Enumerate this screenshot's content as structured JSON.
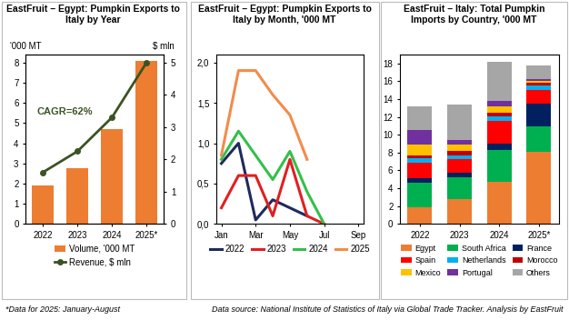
{
  "chart_data": [
    {
      "type": "bar",
      "title": "EastFruit – Egypt: Pumpkin Exports to Italy by Year",
      "categories": [
        "2022",
        "2023",
        "2024",
        "2025*"
      ],
      "series": [
        {
          "name": "Volume, '000 MT",
          "type": "bar",
          "color": "#ED7D31",
          "values": [
            1.9,
            2.75,
            4.7,
            8.1
          ]
        },
        {
          "name": "Revenue, $ mln",
          "type": "line",
          "color": "#3B5323",
          "marker": "o",
          "axis": "y2",
          "values": [
            1.6,
            2.25,
            3.3,
            5.0
          ]
        }
      ],
      "y_label": "'000 MT",
      "y2_label": "$ mln",
      "annotations": [
        "CAGR=62%"
      ],
      "ylim": [
        0,
        8.4
      ],
      "yticks": [
        0,
        1,
        2,
        3,
        4,
        5,
        6,
        7,
        8
      ],
      "y2lim": [
        0,
        5.25
      ],
      "y2ticks": [
        0,
        1,
        2,
        3,
        4,
        5
      ],
      "legend": "below"
    },
    {
      "type": "line",
      "title": "EastFruit – Egypt: Pumpkin Exports to Italy by Month, '000 MT",
      "categories": [
        "Jan",
        null,
        "Mar",
        null,
        "May",
        null,
        "Jul",
        null,
        "Sep"
      ],
      "series": [
        {
          "name": "2022",
          "color": "#1F2A5C",
          "values": [
            0.75,
            1.0,
            0.05,
            0.3,
            0.2,
            0.1,
            null,
            null,
            null
          ]
        },
        {
          "name": "2023",
          "color": "#E02020",
          "values": [
            0.2,
            0.6,
            0.6,
            0.1,
            0.8,
            0.1,
            0.0,
            null,
            null
          ]
        },
        {
          "name": "2024",
          "color": "#33C04A",
          "values": [
            0.8,
            1.15,
            0.85,
            0.55,
            0.9,
            0.4,
            0.0,
            null,
            null
          ]
        },
        {
          "name": "2025",
          "color": "#F28C4A",
          "values": [
            0.85,
            1.9,
            1.9,
            1.6,
            1.35,
            0.8,
            null,
            null,
            null
          ]
        }
      ],
      "ylim": [
        0,
        2.1
      ],
      "yticks": [
        {
          "value": 0,
          "label": "0,0"
        },
        {
          "value": 0.5,
          "label": "0,5"
        },
        {
          "value": 1,
          "label": "1,0"
        },
        {
          "value": 1.5,
          "label": "1,5"
        },
        {
          "value": 2,
          "label": "2,0"
        }
      ],
      "legend": "below"
    },
    {
      "type": "bar",
      "stacked": true,
      "title": "EastFruit – Italy: Total Pumpkin Imports by Country, '000 MT",
      "categories": [
        "2022",
        "2023",
        "2024",
        "2025*"
      ],
      "series": [
        {
          "name": "Egypt",
          "color": "#ED7D31",
          "values": [
            1.9,
            2.75,
            4.7,
            8.1
          ]
        },
        {
          "name": "South Africa",
          "color": "#00B050",
          "values": [
            2.7,
            2.5,
            3.6,
            2.8
          ]
        },
        {
          "name": "France",
          "color": "#002060",
          "values": [
            0.5,
            0.5,
            0.7,
            2.6
          ]
        },
        {
          "name": "Spain",
          "color": "#FF0000",
          "values": [
            1.8,
            1.5,
            2.5,
            1.5
          ]
        },
        {
          "name": "Netherlands",
          "color": "#00B0F0",
          "values": [
            0.5,
            0.4,
            0.6,
            0.5
          ]
        },
        {
          "name": "Morocco",
          "color": "#C00000",
          "values": [
            0.3,
            0.5,
            0.4,
            0.3
          ]
        },
        {
          "name": "Mexico",
          "color": "#FFC000",
          "values": [
            1.2,
            0.8,
            0.7,
            0.2
          ]
        },
        {
          "name": "Portugal",
          "color": "#7030A0",
          "values": [
            1.6,
            0.5,
            0.6,
            0.2
          ]
        },
        {
          "name": "Others",
          "color": "#A6A6A6",
          "values": [
            2.7,
            3.9,
            4.4,
            1.6
          ]
        }
      ],
      "ylim": [
        0,
        19
      ],
      "yticks": [
        0,
        2,
        4,
        6,
        8,
        10,
        12,
        14,
        16,
        18
      ],
      "legend": "below"
    }
  ],
  "notes": [
    "*Data for 2025: January-August",
    "Data source: National Institute of Statistics of Italy via Global Trade Tracker. Analysis by EastFruit"
  ]
}
